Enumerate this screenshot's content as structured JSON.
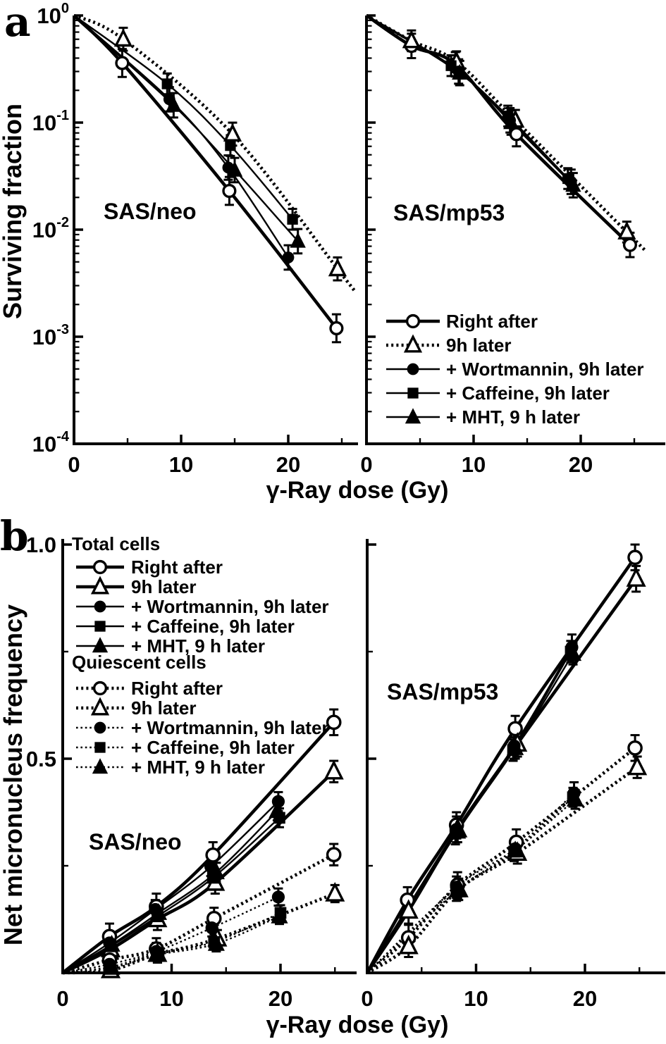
{
  "panel_a": {
    "label": "a",
    "legend": {
      "items": [
        {
          "key": "right_after",
          "label": "Right after"
        },
        {
          "key": "later_9h",
          "label": "9h later"
        },
        {
          "key": "wortmannin",
          "label": "+ Wortmannin, 9h later"
        },
        {
          "key": "caffeine",
          "label": "+ Caffeine, 9h later"
        },
        {
          "key": "mht",
          "label": "+ MHT, 9 h later"
        }
      ]
    }
  },
  "panel_b": {
    "label": "b",
    "legend": {
      "total_header": "Total cells",
      "quiescent_header": "Quiescent cells",
      "items": [
        {
          "key": "right_after",
          "label": "Right after"
        },
        {
          "key": "later_9h",
          "label": "9h later"
        },
        {
          "key": "wortmannin",
          "label": "+ Wortmannin, 9h later"
        },
        {
          "key": "caffeine",
          "label": "+ Caffeine, 9h later"
        },
        {
          "key": "mht",
          "label": "+ MHT, 9 h later"
        }
      ]
    }
  },
  "chart_data": [
    {
      "id": "a_neo",
      "type": "line",
      "panel": "a",
      "title": "SAS/neo",
      "xlabel": "γ-Ray dose (Gy)",
      "ylabel": "Surviving fraction",
      "yscale": "log",
      "xlim": [
        0,
        26.5
      ],
      "ylim": [
        0.0001,
        1
      ],
      "xticks": [
        {
          "v": 0,
          "label": "0"
        },
        {
          "v": 10,
          "label": "10"
        },
        {
          "v": 20,
          "label": "20"
        }
      ],
      "xminor": [
        5,
        15,
        25
      ],
      "yticks": [
        {
          "v": 1,
          "label": "10^0"
        },
        {
          "v": 0.1,
          "label": "10^-1"
        },
        {
          "v": 0.01,
          "label": "10^-2"
        },
        {
          "v": 0.001,
          "label": "10^-3"
        },
        {
          "v": 0.0001,
          "label": "10^-4"
        }
      ],
      "origin": [
        0,
        1
      ],
      "series": [
        {
          "key": "right_after",
          "marker": "circle-open",
          "weight": "heavy",
          "dashed": false,
          "x": [
            4.5,
            14.5,
            24.5
          ],
          "y": [
            0.36,
            0.023,
            0.0012
          ],
          "err": 0.35
        },
        {
          "key": "later_9h",
          "marker": "triangle-open",
          "weight": "heavy",
          "dashed": true,
          "x": [
            4.6,
            14.8,
            24.6
          ],
          "y": [
            0.6,
            0.078,
            0.0043
          ],
          "err": 0.28,
          "extend": 1.7
        },
        {
          "key": "wortmannin",
          "marker": "circle-fill",
          "weight": "light",
          "dashed": false,
          "x": [
            8.9,
            14.4,
            20.0
          ],
          "y": [
            0.165,
            0.038,
            0.0055
          ],
          "err": 0.3
        },
        {
          "key": "caffeine",
          "marker": "square-fill",
          "weight": "light",
          "dashed": false,
          "x": [
            8.7,
            14.6,
            20.4
          ],
          "y": [
            0.23,
            0.061,
            0.0125
          ],
          "err": 0.25
        },
        {
          "key": "mht",
          "marker": "triangle-fill",
          "weight": "light",
          "dashed": false,
          "x": [
            9.3,
            15.0,
            20.9
          ],
          "y": [
            0.145,
            0.036,
            0.0078
          ],
          "err": 0.3
        }
      ]
    },
    {
      "id": "a_mp53",
      "type": "line",
      "panel": "a",
      "title": "SAS/mp53",
      "yscale": "log",
      "xlim": [
        0,
        27.8
      ],
      "ylim": [
        0.0001,
        1
      ],
      "xticks": [
        {
          "v": 0,
          "label": "0"
        },
        {
          "v": 10,
          "label": "10"
        },
        {
          "v": 20,
          "label": "20"
        }
      ],
      "xminor": [
        5,
        15,
        25
      ],
      "yticks": [
        {
          "v": 1,
          "label": ""
        },
        {
          "v": 0.1,
          "label": ""
        },
        {
          "v": 0.01,
          "label": ""
        },
        {
          "v": 0.001,
          "label": ""
        },
        {
          "v": 0.0001,
          "label": ""
        }
      ],
      "origin": [
        0,
        1
      ],
      "series": [
        {
          "key": "right_after",
          "marker": "circle-open",
          "weight": "heavy",
          "dashed": false,
          "x": [
            4.2,
            8.3,
            14.0,
            24.6
          ],
          "y": [
            0.52,
            0.35,
            0.078,
            0.0072
          ],
          "err": 0.3
        },
        {
          "key": "later_9h",
          "marker": "triangle-open",
          "weight": "heavy",
          "dashed": true,
          "x": [
            4.2,
            8.4,
            13.9,
            24.3
          ],
          "y": [
            0.58,
            0.37,
            0.105,
            0.0095
          ],
          "err": 0.25,
          "extend": 1.8
        },
        {
          "key": "wortmannin",
          "marker": "circle-fill",
          "weight": "light",
          "dashed": false,
          "x": [
            8.6,
            13.4,
            19.1
          ],
          "y": [
            0.3,
            0.105,
            0.028
          ],
          "err": 0.3
        },
        {
          "key": "caffeine",
          "marker": "square-fill",
          "weight": "light",
          "dashed": false,
          "x": [
            7.9,
            13.2,
            18.8
          ],
          "y": [
            0.34,
            0.115,
            0.03
          ],
          "err": 0.25
        },
        {
          "key": "mht",
          "marker": "triangle-fill",
          "weight": "light",
          "dashed": false,
          "x": [
            8.7,
            13.5,
            19.3
          ],
          "y": [
            0.29,
            0.1,
            0.026
          ],
          "err": 0.3
        }
      ]
    },
    {
      "id": "b_neo",
      "type": "line",
      "panel": "b",
      "title": "SAS/neo",
      "xlabel": "γ-Ray dose (Gy)",
      "ylabel": "Net micronucleus frequency",
      "yscale": "linear",
      "xlim": [
        0,
        26.9
      ],
      "ylim": [
        0,
        1.0
      ],
      "xticks": [
        {
          "v": 0,
          "label": "0"
        },
        {
          "v": 10,
          "label": "10"
        },
        {
          "v": 20,
          "label": "20"
        }
      ],
      "xminor": [
        5,
        15,
        25
      ],
      "yticks": [
        {
          "v": 1.0,
          "label": "1.0"
        },
        {
          "v": 0.5,
          "label": "0.5"
        },
        {
          "v": 0,
          "label": ""
        }
      ],
      "yminor": [
        0.25,
        0.75
      ],
      "origin": [
        0,
        0
      ],
      "series": [
        {
          "group": "total",
          "key": "right_after",
          "marker": "circle-open",
          "weight": "heavy",
          "dashed": false,
          "x": [
            4.3,
            8.6,
            13.8,
            24.9
          ],
          "y": [
            0.085,
            0.155,
            0.275,
            0.585
          ],
          "err": 0.03
        },
        {
          "group": "total",
          "key": "later_9h",
          "marker": "triangle-open",
          "weight": "heavy",
          "dashed": false,
          "x": [
            4.4,
            8.7,
            14.0,
            24.9
          ],
          "y": [
            0.055,
            0.125,
            0.21,
            0.47
          ],
          "err": 0.025
        },
        {
          "group": "total",
          "key": "wortmannin",
          "marker": "circle-fill",
          "weight": "light",
          "dashed": false,
          "x": [
            4.3,
            8.5,
            13.6,
            19.8
          ],
          "y": [
            0.07,
            0.148,
            0.248,
            0.4
          ],
          "err": 0.022
        },
        {
          "group": "total",
          "key": "caffeine",
          "marker": "square-fill",
          "weight": "light",
          "dashed": false,
          "x": [
            4.4,
            8.7,
            13.8,
            19.9
          ],
          "y": [
            0.062,
            0.132,
            0.222,
            0.362
          ],
          "err": 0.022
        },
        {
          "group": "total",
          "key": "mht",
          "marker": "triangle-fill",
          "weight": "light",
          "dashed": false,
          "x": [
            4.5,
            8.8,
            14.1,
            19.7
          ],
          "y": [
            0.066,
            0.14,
            0.235,
            0.378
          ],
          "err": 0.022
        },
        {
          "group": "quiescent",
          "key": "right_after",
          "marker": "circle-open",
          "weight": "heavy",
          "dashed": true,
          "x": [
            4.3,
            8.6,
            13.9,
            24.9
          ],
          "y": [
            0.03,
            0.056,
            0.127,
            0.276
          ],
          "err": 0.025
        },
        {
          "group": "quiescent",
          "key": "later_9h",
          "marker": "triangle-open",
          "weight": "heavy",
          "dashed": true,
          "x": [
            4.4,
            8.7,
            14.2,
            25.0
          ],
          "y": [
            0.006,
            0.044,
            0.08,
            0.185
          ],
          "err": 0.02
        },
        {
          "group": "quiescent",
          "key": "wortmannin",
          "marker": "circle-fill",
          "weight": "light",
          "dashed": true,
          "x": [
            4.3,
            8.6,
            13.7,
            19.8
          ],
          "y": [
            0.02,
            0.05,
            0.105,
            0.177
          ],
          "err": 0.02
        },
        {
          "group": "quiescent",
          "key": "caffeine",
          "marker": "square-fill",
          "weight": "light",
          "dashed": true,
          "x": [
            4.4,
            8.8,
            13.9,
            20.0
          ],
          "y": [
            0.014,
            0.046,
            0.072,
            0.14
          ],
          "err": 0.018
        },
        {
          "group": "quiescent",
          "key": "mht",
          "marker": "triangle-fill",
          "weight": "light",
          "dashed": true,
          "x": [
            4.5,
            8.7,
            14.1,
            19.9
          ],
          "y": [
            0.012,
            0.042,
            0.068,
            0.132
          ],
          "err": 0.018
        }
      ]
    },
    {
      "id": "b_mp53",
      "type": "line",
      "panel": "b",
      "title": "SAS/mp53",
      "yscale": "linear",
      "xlim": [
        0,
        27.3
      ],
      "ylim": [
        0,
        1.0
      ],
      "xticks": [
        {
          "v": 0,
          "label": "0"
        },
        {
          "v": 10,
          "label": "10"
        },
        {
          "v": 20,
          "label": "20"
        }
      ],
      "xminor": [
        5,
        15,
        25
      ],
      "yticks": [
        {
          "v": 1.0,
          "label": ""
        },
        {
          "v": 0.5,
          "label": ""
        },
        {
          "v": 0,
          "label": ""
        }
      ],
      "yminor": [
        0.25,
        0.75
      ],
      "origin": [
        0,
        0
      ],
      "series": [
        {
          "group": "total",
          "key": "right_after",
          "marker": "circle-open",
          "weight": "heavy",
          "dashed": false,
          "x": [
            3.7,
            8.2,
            13.6,
            24.6
          ],
          "y": [
            0.17,
            0.345,
            0.57,
            0.97
          ],
          "err": 0.03
        },
        {
          "group": "total",
          "key": "later_9h",
          "marker": "triangle-open",
          "weight": "heavy",
          "dashed": false,
          "x": [
            3.8,
            8.3,
            13.8,
            24.7
          ],
          "y": [
            0.145,
            0.335,
            0.535,
            0.92
          ],
          "err": 0.03
        },
        {
          "group": "total",
          "key": "wortmannin",
          "marker": "circle-fill",
          "weight": "light",
          "dashed": false,
          "x": [
            8.2,
            13.5,
            18.8
          ],
          "y": [
            0.335,
            0.53,
            0.76
          ],
          "err": 0.03
        },
        {
          "group": "total",
          "key": "caffeine",
          "marker": "square-fill",
          "weight": "light",
          "dashed": false,
          "x": [
            8.1,
            13.4,
            18.7
          ],
          "y": [
            0.325,
            0.52,
            0.75
          ],
          "err": 0.025
        },
        {
          "group": "total",
          "key": "mht",
          "marker": "triangle-fill",
          "weight": "light",
          "dashed": false,
          "x": [
            8.3,
            13.6,
            18.9
          ],
          "y": [
            0.33,
            0.525,
            0.745
          ],
          "err": 0.025
        },
        {
          "group": "quiescent",
          "key": "right_after",
          "marker": "circle-open",
          "weight": "heavy",
          "dashed": true,
          "x": [
            3.8,
            8.3,
            13.7,
            24.6
          ],
          "y": [
            0.082,
            0.205,
            0.305,
            0.525
          ],
          "err": 0.03
        },
        {
          "group": "quiescent",
          "key": "later_9h",
          "marker": "triangle-open",
          "weight": "heavy",
          "dashed": true,
          "x": [
            3.8,
            8.4,
            13.8,
            24.8
          ],
          "y": [
            0.062,
            0.195,
            0.28,
            0.48
          ],
          "err": 0.025
        },
        {
          "group": "quiescent",
          "key": "wortmannin",
          "marker": "circle-fill",
          "weight": "light",
          "dashed": true,
          "x": [
            8.2,
            13.6,
            19.0
          ],
          "y": [
            0.2,
            0.29,
            0.42
          ],
          "err": 0.025
        },
        {
          "group": "quiescent",
          "key": "caffeine",
          "marker": "square-fill",
          "weight": "light",
          "dashed": true,
          "x": [
            8.2,
            13.5,
            18.9
          ],
          "y": [
            0.19,
            0.283,
            0.41
          ],
          "err": 0.022
        },
        {
          "group": "quiescent",
          "key": "mht",
          "marker": "triangle-fill",
          "weight": "light",
          "dashed": true,
          "x": [
            8.3,
            13.6,
            19.1
          ],
          "y": [
            0.193,
            0.286,
            0.405
          ],
          "err": 0.022
        }
      ]
    }
  ]
}
